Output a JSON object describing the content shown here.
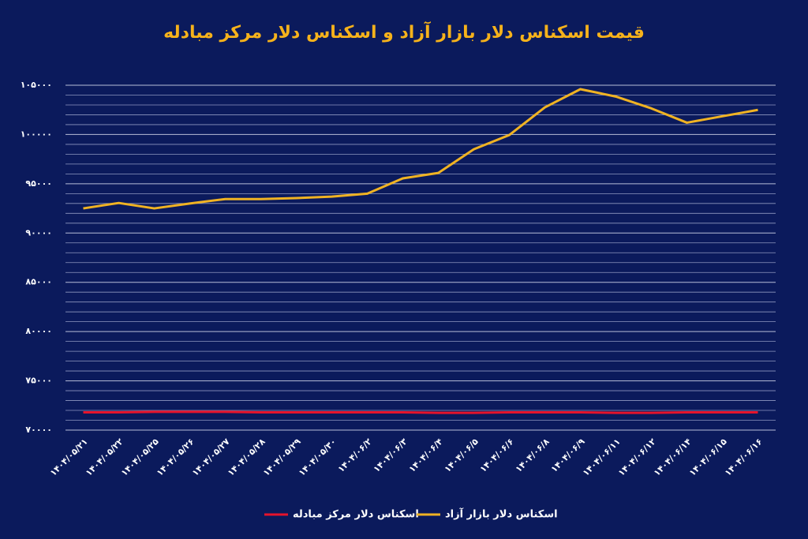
{
  "chart_data": {
    "type": "line",
    "title": "قیمت اسکناس دلار بازار آزاد و اسکناس دلار مرکز مبادله",
    "categories": [
      "۱۴۰۴/۰۵/۲۱",
      "۱۴۰۴/۰۵/۲۲",
      "۱۴۰۴/۰۵/۲۵",
      "۱۴۰۴/۰۵/۲۶",
      "۱۴۰۴/۰۵/۲۷",
      "۱۴۰۴/۰۵/۲۸",
      "۱۴۰۴/۰۵/۲۹",
      "۱۴۰۴/۰۵/۳۰",
      "۱۴۰۴/۰۶/۲",
      "۱۴۰۴/۰۶/۳",
      "۱۴۰۴/۰۶/۴",
      "۱۴۰۴/۰۶/۵",
      "۱۴۰۴/۰۶/۶",
      "۱۴۰۴/۰۶/۸",
      "۱۴۰۴/۰۶/۹",
      "۱۴۰۴/۰۶/۱۱",
      "۱۴۰۴/۰۶/۱۲",
      "۱۴۰۴/۰۶/۱۴",
      "۱۴۰۴/۰۶/۱۵",
      "۱۴۰۴/۰۶/۱۶"
    ],
    "series": [
      {
        "name": "اسکناس دلار مرکز مبادله",
        "color": "#e5132b",
        "values": [
          71800,
          71800,
          71850,
          71850,
          71850,
          71800,
          71800,
          71800,
          71800,
          71800,
          71750,
          71750,
          71800,
          71800,
          71800,
          71750,
          71750,
          71800,
          71800,
          71800
        ]
      },
      {
        "name": "اسکناس دلار بازار آزاد",
        "color": "#f0b323",
        "values": [
          92500,
          93050,
          92500,
          93000,
          93450,
          93450,
          93550,
          93700,
          94000,
          95550,
          96100,
          98500,
          99950,
          102750,
          104600,
          103850,
          102650,
          101200,
          101850,
          102500
        ]
      }
    ],
    "ylim": [
      70000,
      105000
    ],
    "yticks": [
      {
        "value": 70000,
        "label": "۷۰۰۰۰"
      },
      {
        "value": 75000,
        "label": "۷۵۰۰۰"
      },
      {
        "value": 80000,
        "label": "۸۰۰۰۰"
      },
      {
        "value": 85000,
        "label": "۸۵۰۰۰"
      },
      {
        "value": 90000,
        "label": "۹۰۰۰۰"
      },
      {
        "value": 95000,
        "label": "۹۵۰۰۰"
      },
      {
        "value": 100000,
        "label": "۱۰۰۰۰۰"
      },
      {
        "value": 105000,
        "label": "۱۰۵۰۰۰"
      }
    ],
    "grid": true
  }
}
